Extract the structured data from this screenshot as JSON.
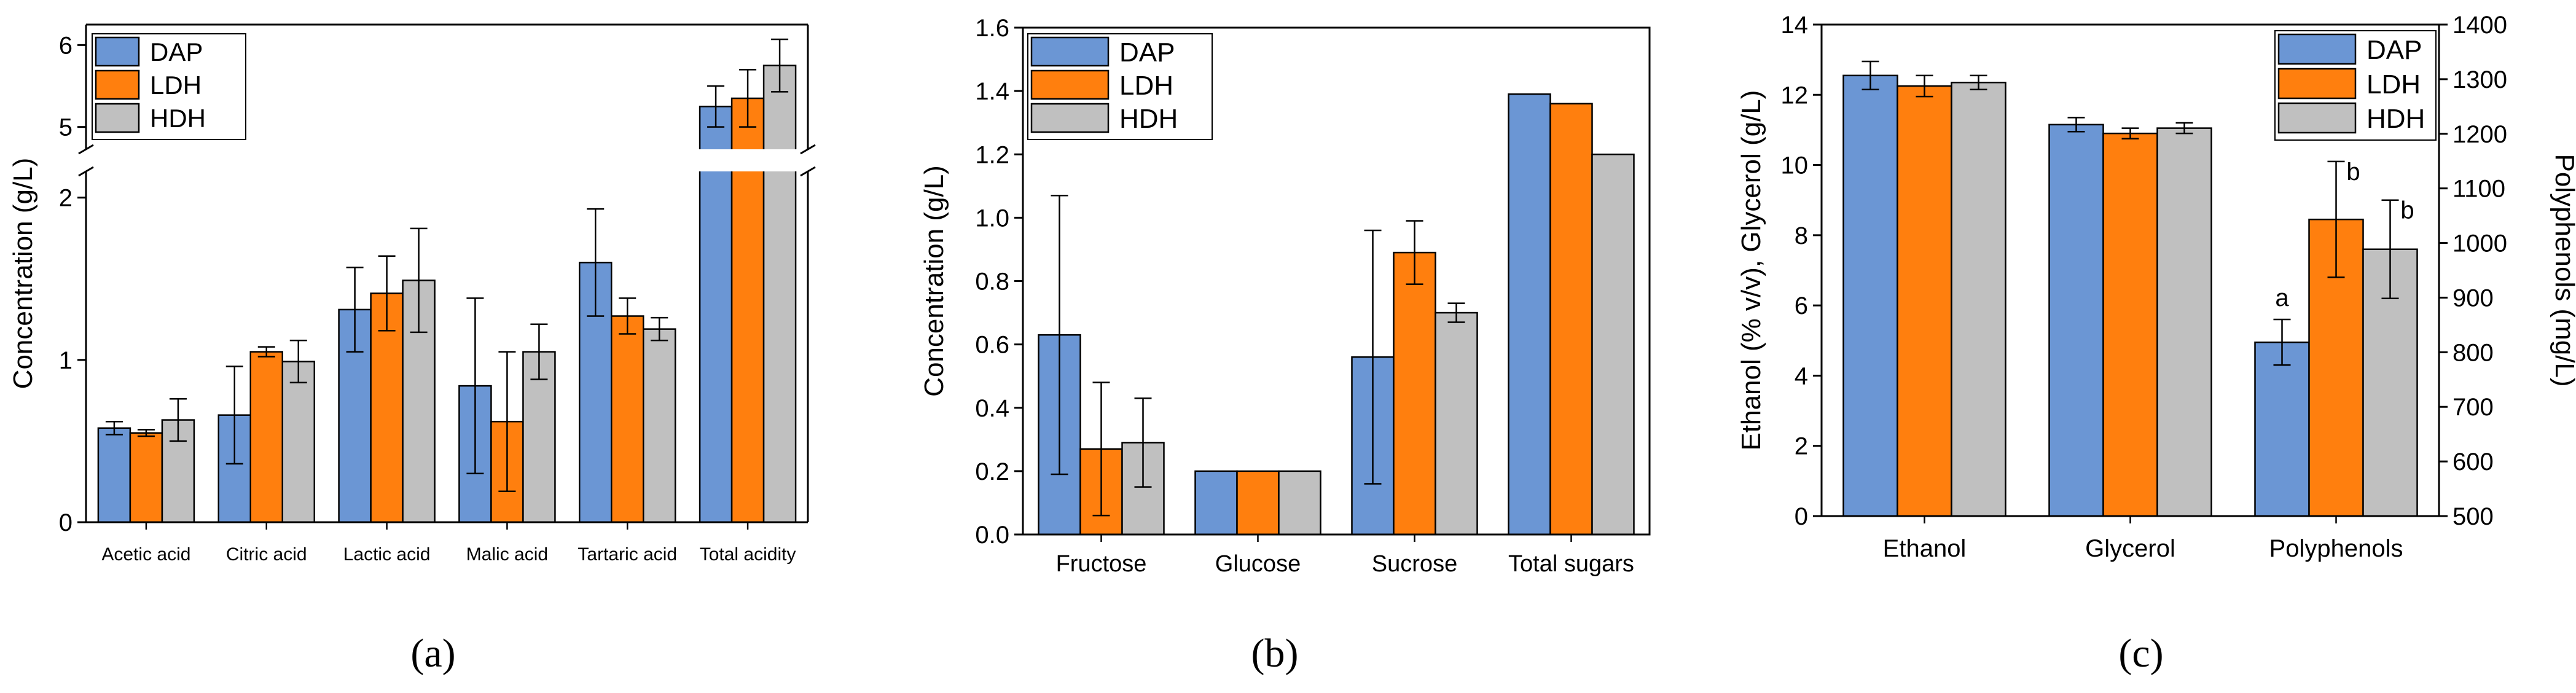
{
  "figure": {
    "panel_labels": [
      "(a)",
      "(b)",
      "(c)"
    ],
    "colors": {
      "DAP": "#6b96d4",
      "LDH": "#ff7f0e",
      "HDH": "#c0c0c0"
    }
  },
  "chart_data": [
    {
      "type": "bar",
      "panel": "a",
      "ylabel": "Concentration (g/L)",
      "categories": [
        "Acetic acid",
        "Citric acid",
        "Lactic acid",
        "Malic acid",
        "Tartaric acid",
        "Total acidity"
      ],
      "axis_break": {
        "lower_range": [
          0,
          2.15
        ],
        "upper_range": [
          4.75,
          6.25
        ],
        "lower_ticks": [
          0,
          1,
          2
        ],
        "upper_ticks": [
          5,
          6
        ]
      },
      "series": [
        {
          "name": "DAP",
          "values": [
            0.58,
            0.66,
            1.31,
            0.84,
            1.6,
            5.25
          ],
          "errors": [
            0.04,
            0.3,
            0.26,
            0.54,
            0.33,
            0.25
          ]
        },
        {
          "name": "LDH",
          "values": [
            0.55,
            1.05,
            1.41,
            0.62,
            1.27,
            5.35
          ],
          "errors": [
            0.02,
            0.03,
            0.23,
            0.43,
            0.11,
            0.35
          ]
        },
        {
          "name": "HDH",
          "values": [
            0.63,
            0.99,
            1.49,
            1.05,
            1.19,
            5.75
          ],
          "errors": [
            0.13,
            0.13,
            0.32,
            0.17,
            0.07,
            0.32
          ]
        }
      ],
      "legend": "top-left"
    },
    {
      "type": "bar",
      "panel": "b",
      "ylabel": "Concentration (g/L)",
      "ylim": [
        0,
        1.6
      ],
      "yticks": [
        "0.0",
        "0.2",
        "0.4",
        "0.6",
        "0.8",
        "1.0",
        "1.2",
        "1.4",
        "1.6"
      ],
      "categories": [
        "Fructose",
        "Glucose",
        "Sucrose",
        "Total sugars"
      ],
      "series": [
        {
          "name": "DAP",
          "values": [
            0.63,
            0.2,
            0.56,
            1.39
          ],
          "errors": [
            0.44,
            0,
            0.4,
            0
          ]
        },
        {
          "name": "LDH",
          "values": [
            0.27,
            0.2,
            0.89,
            1.36
          ],
          "errors": [
            0.21,
            0,
            0.1,
            0
          ]
        },
        {
          "name": "HDH",
          "values": [
            0.29,
            0.2,
            0.7,
            1.2
          ],
          "errors": [
            0.14,
            0,
            0.03,
            0
          ]
        }
      ],
      "legend": "top-left"
    },
    {
      "type": "bar",
      "panel": "c",
      "ylabel": "Ethanol (% v/v), Glycerol (g/L)",
      "y2label": "Polyphenols (mg/L)",
      "ylim": [
        0,
        14
      ],
      "yticks": [
        "0",
        "2",
        "4",
        "6",
        "8",
        "10",
        "12",
        "14"
      ],
      "y2lim": [
        500,
        1400
      ],
      "y2ticks": [
        "500",
        "600",
        "700",
        "800",
        "900",
        "1000",
        "1100",
        "1200",
        "1300",
        "1400"
      ],
      "categories": [
        "Ethanol",
        "Glycerol",
        "Polyphenols"
      ],
      "series": [
        {
          "name": "DAP",
          "values": [
            12.55,
            11.15,
            4.95
          ],
          "errors": [
            0.4,
            0.2,
            0.65
          ]
        },
        {
          "name": "LDH",
          "values": [
            12.25,
            10.9,
            8.45
          ],
          "errors": [
            0.3,
            0.15,
            1.65
          ]
        },
        {
          "name": "HDH",
          "values": [
            12.35,
            11.05,
            7.6
          ],
          "errors": [
            0.2,
            0.15,
            1.4
          ]
        }
      ],
      "annotations": [
        {
          "category": "Polyphenols",
          "series": "DAP",
          "text": "a"
        },
        {
          "category": "Polyphenols",
          "series": "LDH",
          "text": "b"
        },
        {
          "category": "Polyphenols",
          "series": "HDH",
          "text": "b"
        }
      ],
      "legend": "top-right"
    }
  ]
}
